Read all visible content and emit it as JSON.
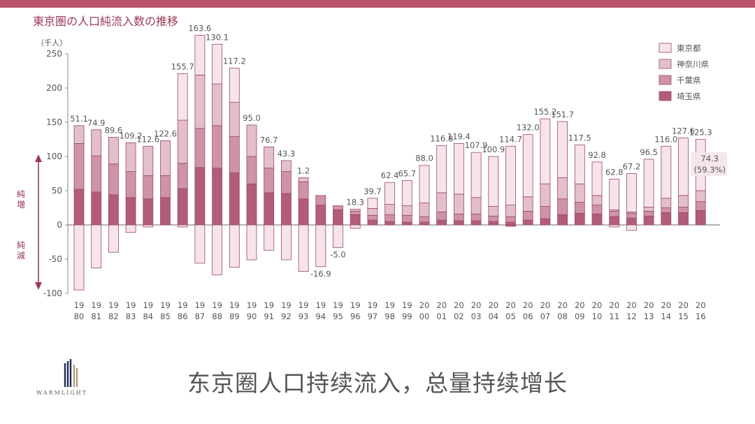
{
  "page": {
    "caption": "东京圈人口持续流入，总量持续增长",
    "brand": "WARMLIGHT",
    "colors": {
      "topbar": "#b8556a",
      "title": "#9b3a55"
    }
  },
  "chart_data": {
    "type": "bar",
    "stacked": true,
    "title": "東京圏の人口純流入数の推移",
    "ylabel": "（千人）",
    "ylim": [
      -100,
      250
    ],
    "yticks": [
      -100,
      -50,
      0,
      50,
      100,
      150,
      200,
      250
    ],
    "side_labels": {
      "increase": "純増",
      "decrease": "純減"
    },
    "legend_position": "top-right",
    "categories": [
      "1980",
      "1981",
      "1982",
      "1983",
      "1984",
      "1985",
      "1986",
      "1987",
      "1988",
      "1989",
      "1990",
      "1991",
      "1992",
      "1993",
      "1994",
      "1995",
      "1996",
      "1997",
      "1998",
      "1999",
      "2000",
      "2001",
      "2002",
      "2003",
      "2004",
      "2005",
      "2006",
      "2007",
      "2008",
      "2009",
      "2010",
      "2011",
      "2012",
      "2013",
      "2014",
      "2015",
      "2016"
    ],
    "tick_labels_top": [
      "19",
      "19",
      "19",
      "19",
      "19",
      "19",
      "19",
      "19",
      "19",
      "19",
      "19",
      "19",
      "19",
      "19",
      "19",
      "19",
      "19",
      "19",
      "19",
      "19",
      "20",
      "20",
      "20",
      "20",
      "20",
      "20",
      "20",
      "20",
      "20",
      "20",
      "20",
      "20",
      "20",
      "20",
      "20",
      "20",
      "20"
    ],
    "tick_labels_bottom": [
      "80",
      "81",
      "82",
      "83",
      "84",
      "85",
      "86",
      "87",
      "88",
      "89",
      "90",
      "91",
      "92",
      "93",
      "94",
      "95",
      "96",
      "97",
      "98",
      "99",
      "00",
      "01",
      "02",
      "03",
      "04",
      "05",
      "06",
      "07",
      "08",
      "09",
      "10",
      "11",
      "12",
      "13",
      "14",
      "15",
      "16"
    ],
    "totals": [
      "51.1",
      "74.9",
      "89.6",
      "109.2",
      "112.6",
      "122.6",
      "155.7",
      "163.6",
      "130.1",
      "117.2",
      "95.0",
      "76.7",
      "43.3",
      "1.2",
      "-16.9",
      "-5.0",
      "18.3",
      "39.7",
      "62.4",
      "65.7",
      "88.0",
      "116.8",
      "119.4",
      "107.9",
      "100.9",
      "114.7",
      "132.0",
      "155.2",
      "151.7",
      "117.5",
      "92.8",
      "62.8",
      "67.2",
      "96.5",
      "116.0",
      "127.6",
      "125.3"
    ],
    "annotations": [
      {
        "category": "2016",
        "text": "74.3",
        "sub": "(59.3%)"
      }
    ],
    "series": [
      {
        "name": "埼玉県",
        "color": "#b25d77",
        "positive": [
          52,
          48,
          44,
          40,
          38,
          40,
          53,
          84,
          83,
          76,
          60,
          47,
          46,
          38,
          29,
          22,
          15,
          7,
          5,
          4,
          4,
          7,
          6,
          6,
          5,
          4,
          7,
          9,
          15,
          17,
          16,
          12,
          10,
          13,
          18,
          18,
          21
        ],
        "negative": [
          0,
          0,
          0,
          0,
          0,
          0,
          0,
          0,
          0,
          0,
          0,
          0,
          0,
          0,
          0,
          0,
          0,
          0,
          0,
          0,
          0,
          0,
          0,
          0,
          0,
          -2,
          0,
          0,
          0,
          0,
          0,
          0,
          0,
          0,
          0,
          0,
          0
        ]
      },
      {
        "name": "千葉県",
        "color": "#cf93a6",
        "positive": [
          67,
          53,
          45,
          38,
          34,
          32,
          37,
          57,
          62,
          53,
          40,
          36,
          32,
          25,
          14,
          6,
          5,
          7,
          10,
          10,
          8,
          12,
          10,
          10,
          8,
          8,
          13,
          18,
          23,
          16,
          13,
          8,
          7,
          7,
          7,
          8,
          13
        ]
      },
      {
        "name": "神奈川県",
        "color": "#e3bfcb",
        "positive": [
          26,
          38,
          39,
          42,
          43,
          51,
          63,
          78,
          61,
          50,
          46,
          31,
          16,
          6,
          0,
          0,
          3,
          10,
          15,
          14,
          20,
          28,
          29,
          24,
          14,
          17,
          21,
          33,
          31,
          27,
          14,
          2,
          2,
          6,
          14,
          17,
          16
        ]
      },
      {
        "name": "東京都",
        "color": "#f6e4ea",
        "positive": [
          0,
          0,
          0,
          0,
          0,
          0,
          68,
          58,
          58,
          50,
          0,
          0,
          0,
          0,
          0,
          0,
          0,
          15,
          32,
          37,
          55,
          69,
          74,
          66,
          73,
          86,
          91,
          95,
          82,
          57,
          49,
          45,
          56,
          70,
          76,
          84,
          75
        ],
        "negative": [
          -95,
          -63,
          -40,
          -11,
          -3,
          0,
          -3,
          -56,
          -73,
          -62,
          -51,
          -37,
          -51,
          -68,
          -61,
          -33,
          -5,
          0,
          0,
          0,
          0,
          0,
          0,
          0,
          0,
          0,
          0,
          0,
          0,
          0,
          0,
          -3,
          -8,
          0,
          0,
          0,
          0
        ]
      }
    ]
  }
}
